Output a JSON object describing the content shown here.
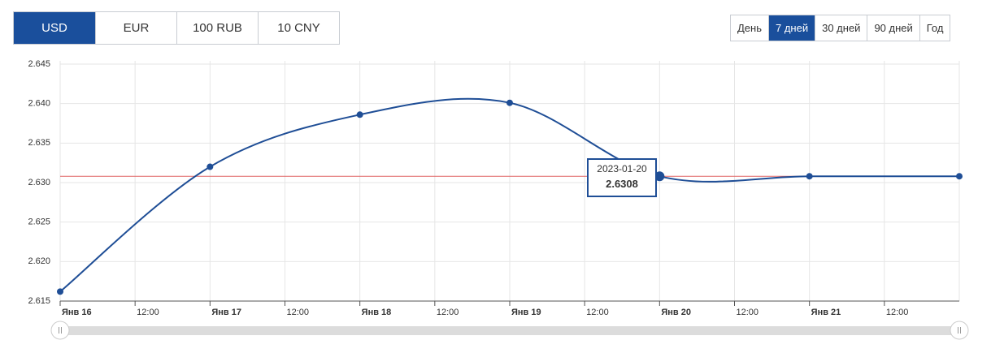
{
  "currency_tabs": {
    "items": [
      "USD",
      "EUR",
      "100 RUB",
      "10 CNY"
    ],
    "active": 0
  },
  "period_tabs": {
    "items": [
      "День",
      "7 дней",
      "30 дней",
      "90 дней",
      "Год"
    ],
    "active": 1
  },
  "chart_data": {
    "type": "line",
    "x": [
      0,
      24,
      48,
      72,
      96,
      120,
      144
    ],
    "series": [
      {
        "color": "#1f4e96",
        "values": [
          2.6162,
          2.632,
          2.6386,
          2.6401,
          2.6308,
          2.6308,
          2.6308
        ]
      }
    ],
    "xlim": [
      0,
      144
    ],
    "xticks": [
      {
        "value": 0,
        "label": "Янв 16"
      },
      {
        "value": 12,
        "label": "12:00"
      },
      {
        "value": 24,
        "label": "Янв 17"
      },
      {
        "value": 36,
        "label": "12:00"
      },
      {
        "value": 48,
        "label": "Янв 18"
      },
      {
        "value": 60,
        "label": "12:00"
      },
      {
        "value": 72,
        "label": "Янв 19"
      },
      {
        "value": 84,
        "label": "12:00"
      },
      {
        "value": 96,
        "label": "Янв 20"
      },
      {
        "value": 108,
        "label": "12:00"
      },
      {
        "value": 120,
        "label": "Янв 21"
      },
      {
        "value": 132,
        "label": "12:00"
      }
    ],
    "ylim": [
      2.615,
      2.645
    ],
    "yticks": [
      2.615,
      {
        "value": 2.62,
        "label": "2.620"
      },
      2.625,
      {
        "value": 2.63,
        "label": "2.630"
      },
      2.635,
      {
        "value": 2.64,
        "label": "2.640"
      },
      2.645
    ],
    "reference_line": {
      "value": 2.6308,
      "color": "#e06666"
    },
    "grid": true,
    "tooltip": {
      "label": "2023-01-20",
      "value": 2.6308
    }
  }
}
